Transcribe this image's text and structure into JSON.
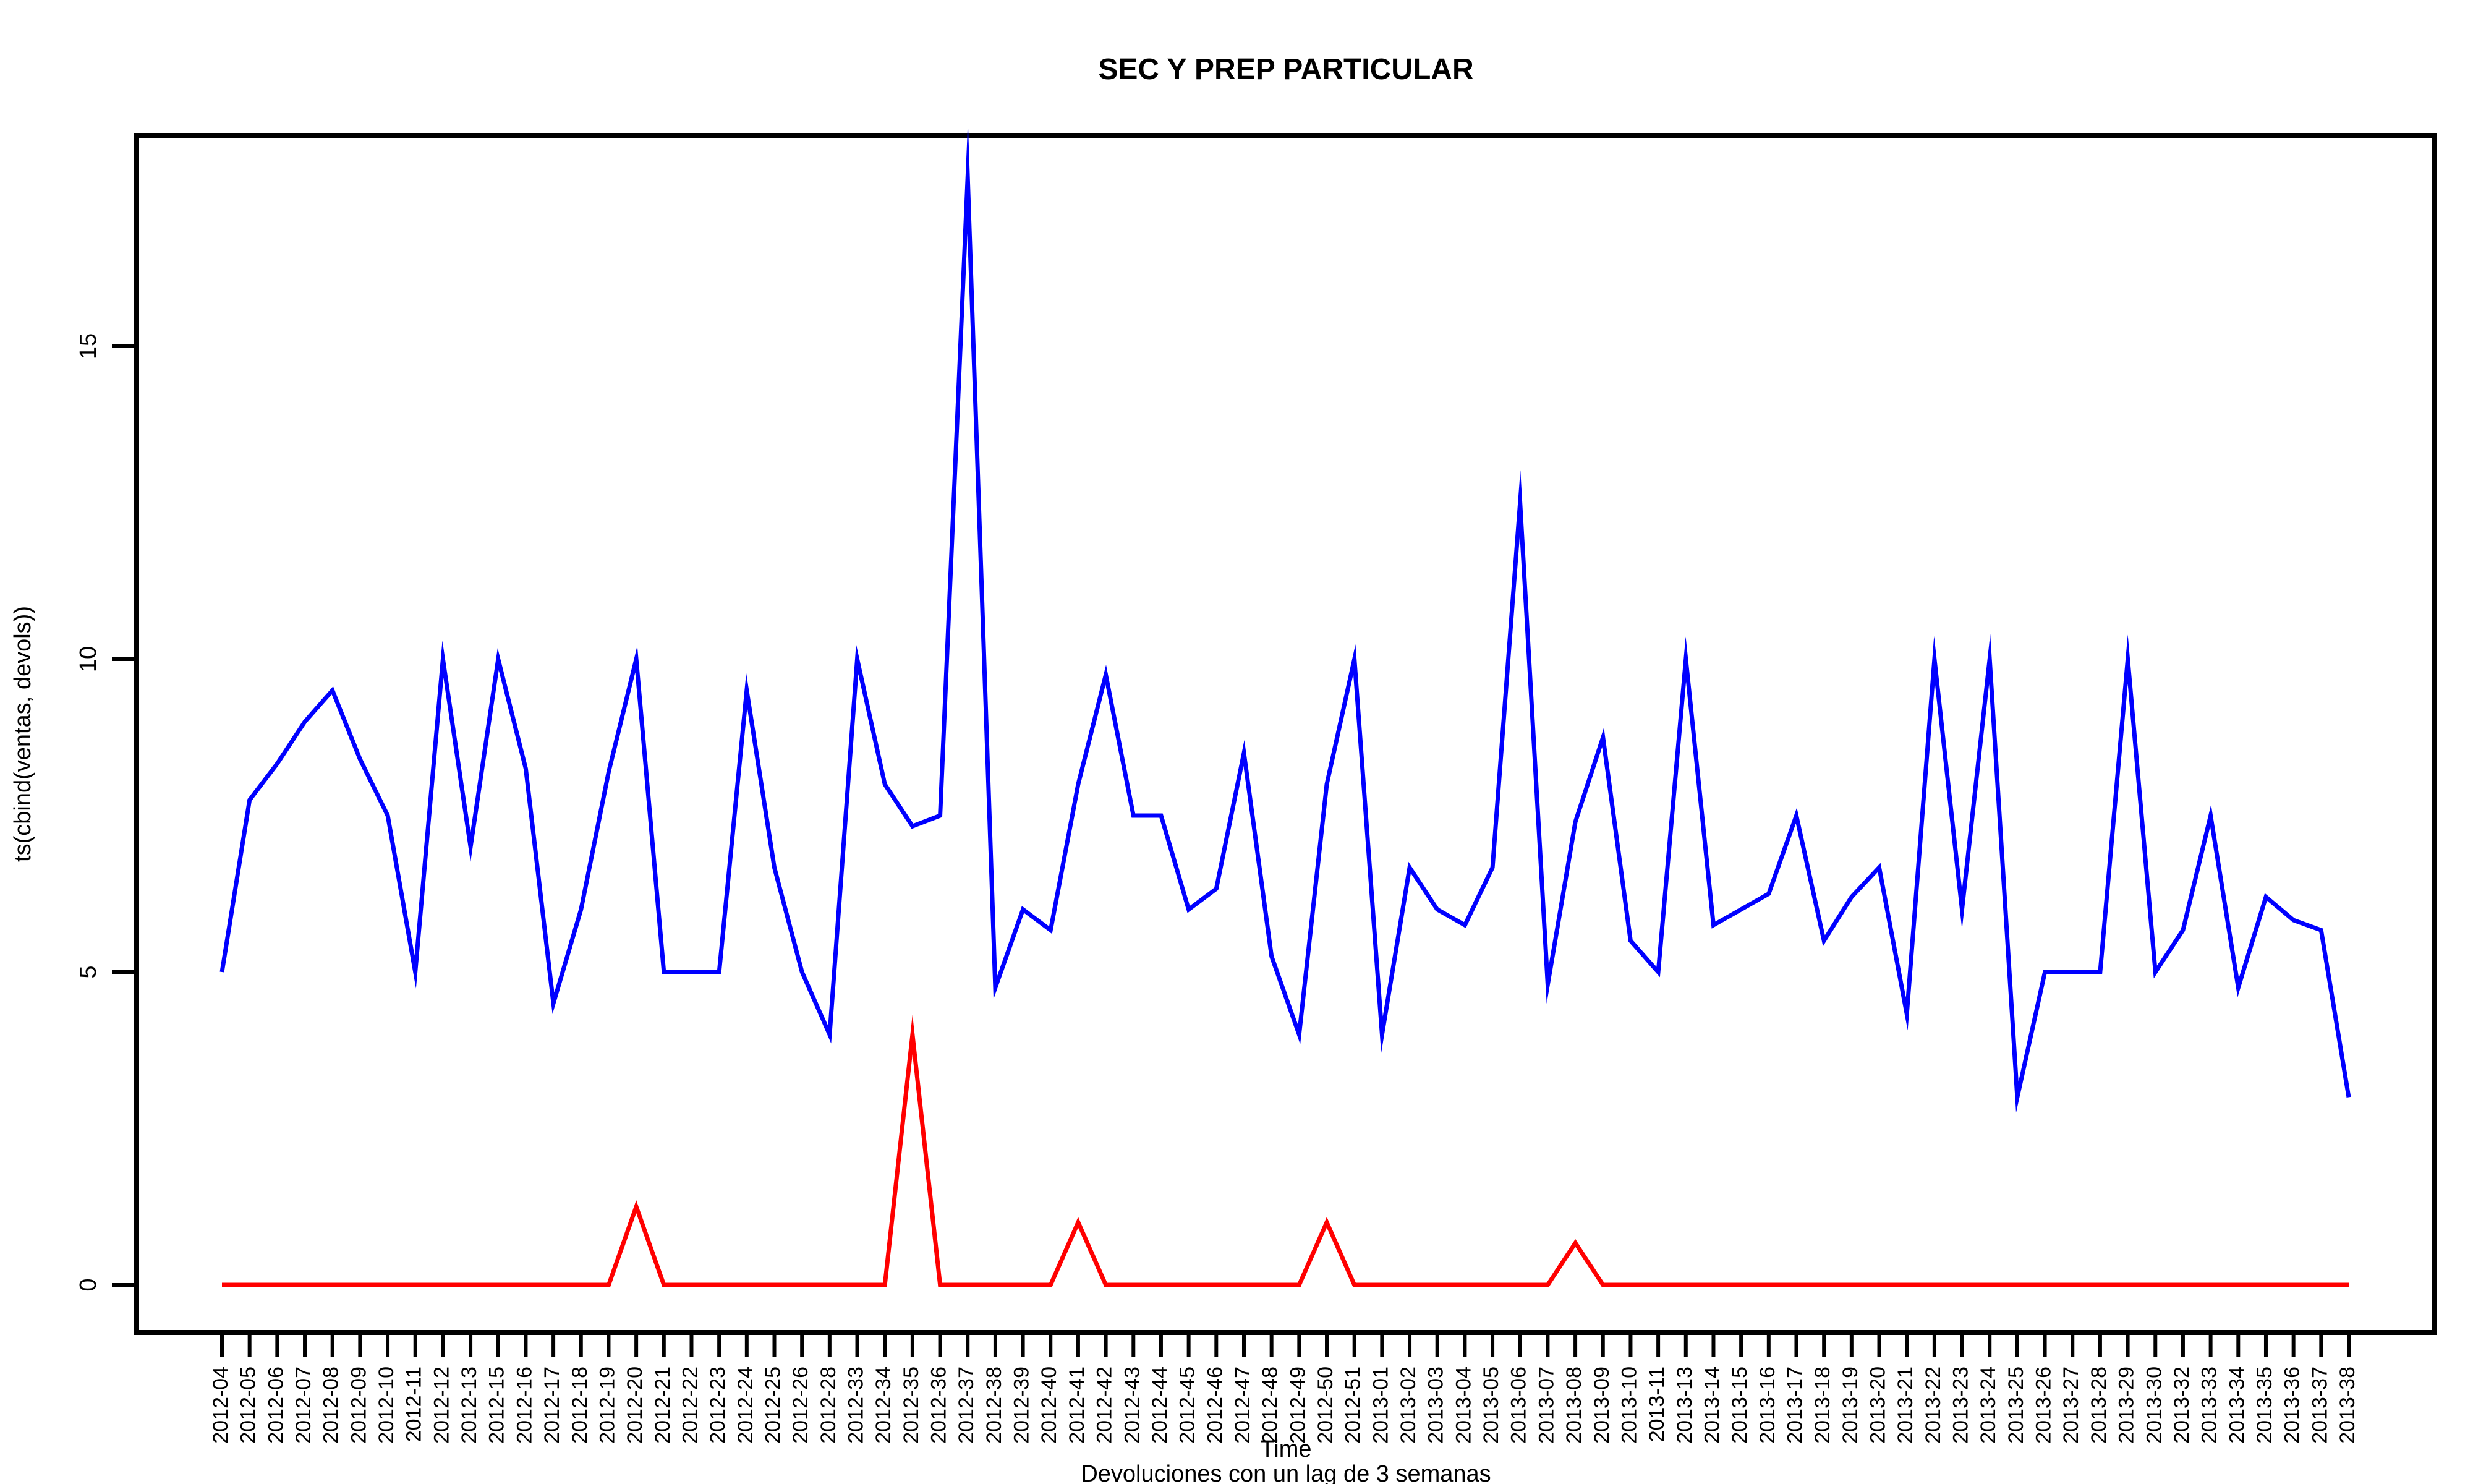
{
  "chart_data": {
    "type": "line",
    "title": "SEC Y PREP PARTICULAR",
    "xlabel": "Time",
    "ylabel": "ts(cbind(ventas, devols))",
    "subtitle": "Devoluciones con un lag de 3 semanas",
    "grid": false,
    "ylim": [
      -0.7,
      18.3
    ],
    "yticks": [
      0,
      5,
      10,
      15
    ],
    "categories": [
      "2012-04",
      "2012-05",
      "2012-06",
      "2012-07",
      "2012-08",
      "2012-09",
      "2012-10",
      "2012-11",
      "2012-12",
      "2012-13",
      "2012-15",
      "2012-16",
      "2012-17",
      "2012-18",
      "2012-19",
      "2012-20",
      "2012-21",
      "2012-22",
      "2012-23",
      "2012-24",
      "2012-25",
      "2012-26",
      "2012-28",
      "2012-33",
      "2012-34",
      "2012-35",
      "2012-36",
      "2012-37",
      "2012-38",
      "2012-39",
      "2012-40",
      "2012-41",
      "2012-42",
      "2012-43",
      "2012-44",
      "2012-45",
      "2012-46",
      "2012-47",
      "2012-48",
      "2012-49",
      "2012-50",
      "2012-51",
      "2013-01",
      "2013-02",
      "2013-03",
      "2013-04",
      "2013-05",
      "2013-06",
      "2013-07",
      "2013-08",
      "2013-09",
      "2013-10",
      "2013-11",
      "2013-13",
      "2013-14",
      "2013-15",
      "2013-16",
      "2013-17",
      "2013-18",
      "2013-19",
      "2013-20",
      "2013-21",
      "2013-22",
      "2013-23",
      "2013-24",
      "2013-25",
      "2013-26",
      "2013-27",
      "2013-28",
      "2013-29",
      "2013-30",
      "2013-32",
      "2013-33",
      "2013-34",
      "2013-35",
      "2013-36",
      "2013-37",
      "2013-38"
    ],
    "series": [
      {
        "color": "#0000ff",
        "values": [
          5,
          7.75,
          8.33,
          9,
          9.5,
          8.4,
          7.5,
          5,
          10,
          7,
          10,
          8.25,
          4.5,
          6,
          8.2,
          10,
          5,
          5,
          5,
          9.5,
          6.67,
          5,
          4,
          10,
          8,
          7.33,
          7.5,
          17.7,
          4.75,
          6,
          5.67,
          8,
          9.75,
          7.5,
          7.5,
          6,
          6.33,
          8.5,
          5.25,
          4,
          8,
          10,
          4,
          6.67,
          6,
          5.75,
          6.67,
          12.5,
          4.8,
          7.4,
          8.75,
          5.5,
          5,
          10,
          5.75,
          6,
          6.25,
          7.5,
          5.5,
          6.2,
          6.67,
          4.33,
          10,
          6,
          10,
          3,
          5,
          5,
          5,
          10,
          5,
          5.67,
          7.5,
          4.75,
          6.2,
          5.83,
          5.67,
          3
        ]
      },
      {
        "color": "#ff0000",
        "values": [
          0,
          0,
          0,
          0,
          0,
          0,
          0,
          0,
          0,
          0,
          0,
          0,
          0,
          0,
          0,
          1.25,
          0,
          0,
          0,
          0,
          0,
          0,
          0,
          0,
          0,
          4,
          0,
          0,
          0,
          0,
          0,
          1,
          0,
          0,
          0,
          0,
          0,
          0,
          0,
          0,
          1,
          0,
          0,
          0,
          0,
          0,
          0,
          0,
          0,
          0.67,
          0,
          0,
          0,
          0,
          0,
          0,
          0,
          0,
          0,
          0,
          0,
          0,
          0,
          0,
          0,
          0,
          0,
          0,
          0,
          0,
          0,
          0,
          0,
          0,
          0,
          0,
          0,
          0
        ]
      }
    ]
  }
}
